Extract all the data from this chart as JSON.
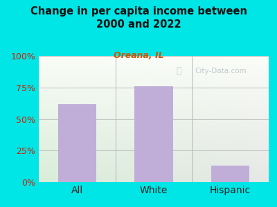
{
  "categories": [
    "All",
    "White",
    "Hispanic"
  ],
  "values": [
    62,
    76,
    13
  ],
  "bar_color": "#c0aed8",
  "title": "Change in per capita income between\n2000 and 2022",
  "subtitle": "Oreana, IL",
  "subtitle_color": "#cc5500",
  "title_color": "#111111",
  "background_color": "#00e5e5",
  "ylabel_ticks": [
    "0%",
    "25%",
    "50%",
    "75%",
    "100%"
  ],
  "ytick_vals": [
    0,
    25,
    50,
    75,
    100
  ],
  "ylim": [
    0,
    100
  ],
  "tick_color": "#cc2200",
  "grid_color": "#bbbbbb",
  "watermark": "City-Data.com",
  "bar_width": 0.5
}
